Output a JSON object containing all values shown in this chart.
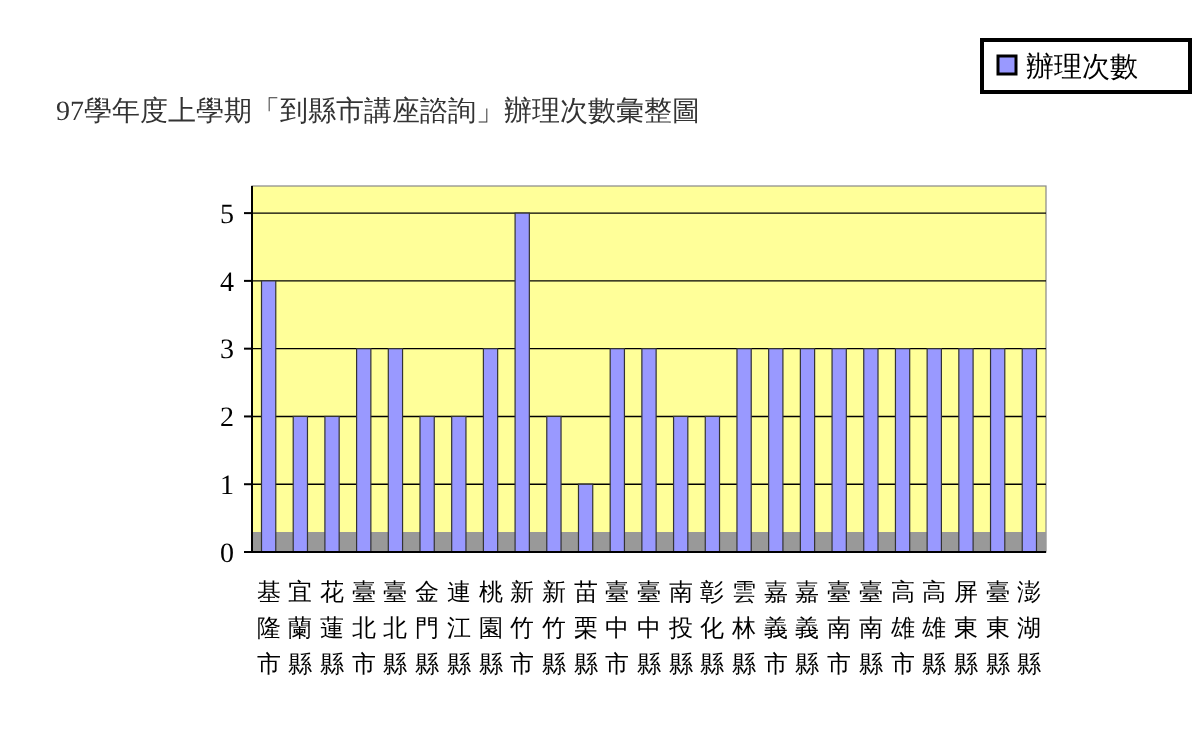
{
  "chart_data": {
    "type": "bar",
    "title": "97學年度上學期「到縣市講座諮詢」辦理次數彙整圖",
    "categories": [
      "基隆市",
      "宜蘭縣",
      "花蓮縣",
      "臺北市",
      "臺北縣",
      "金門縣",
      "連江縣",
      "桃園縣",
      "新竹市",
      "新竹縣",
      "苗栗縣",
      "臺中市",
      "臺中縣",
      "南投縣",
      "彰化縣",
      "雲林縣",
      "嘉義市",
      "嘉義縣",
      "臺南市",
      "臺南縣",
      "高雄市",
      "高雄縣",
      "屏東縣",
      "臺東縣",
      "澎湖縣"
    ],
    "series": [
      {
        "name": "辦理次數",
        "color": "#9999ff",
        "values": [
          4,
          2,
          2,
          3,
          3,
          2,
          2,
          3,
          5,
          2,
          1,
          3,
          3,
          2,
          2,
          3,
          3,
          3,
          3,
          3,
          3,
          3,
          3,
          3,
          3
        ]
      }
    ],
    "ylim": [
      0,
      5.4
    ],
    "yticks": [
      0,
      1,
      2,
      3,
      4,
      5
    ],
    "grid": "y",
    "legend": "top right"
  }
}
